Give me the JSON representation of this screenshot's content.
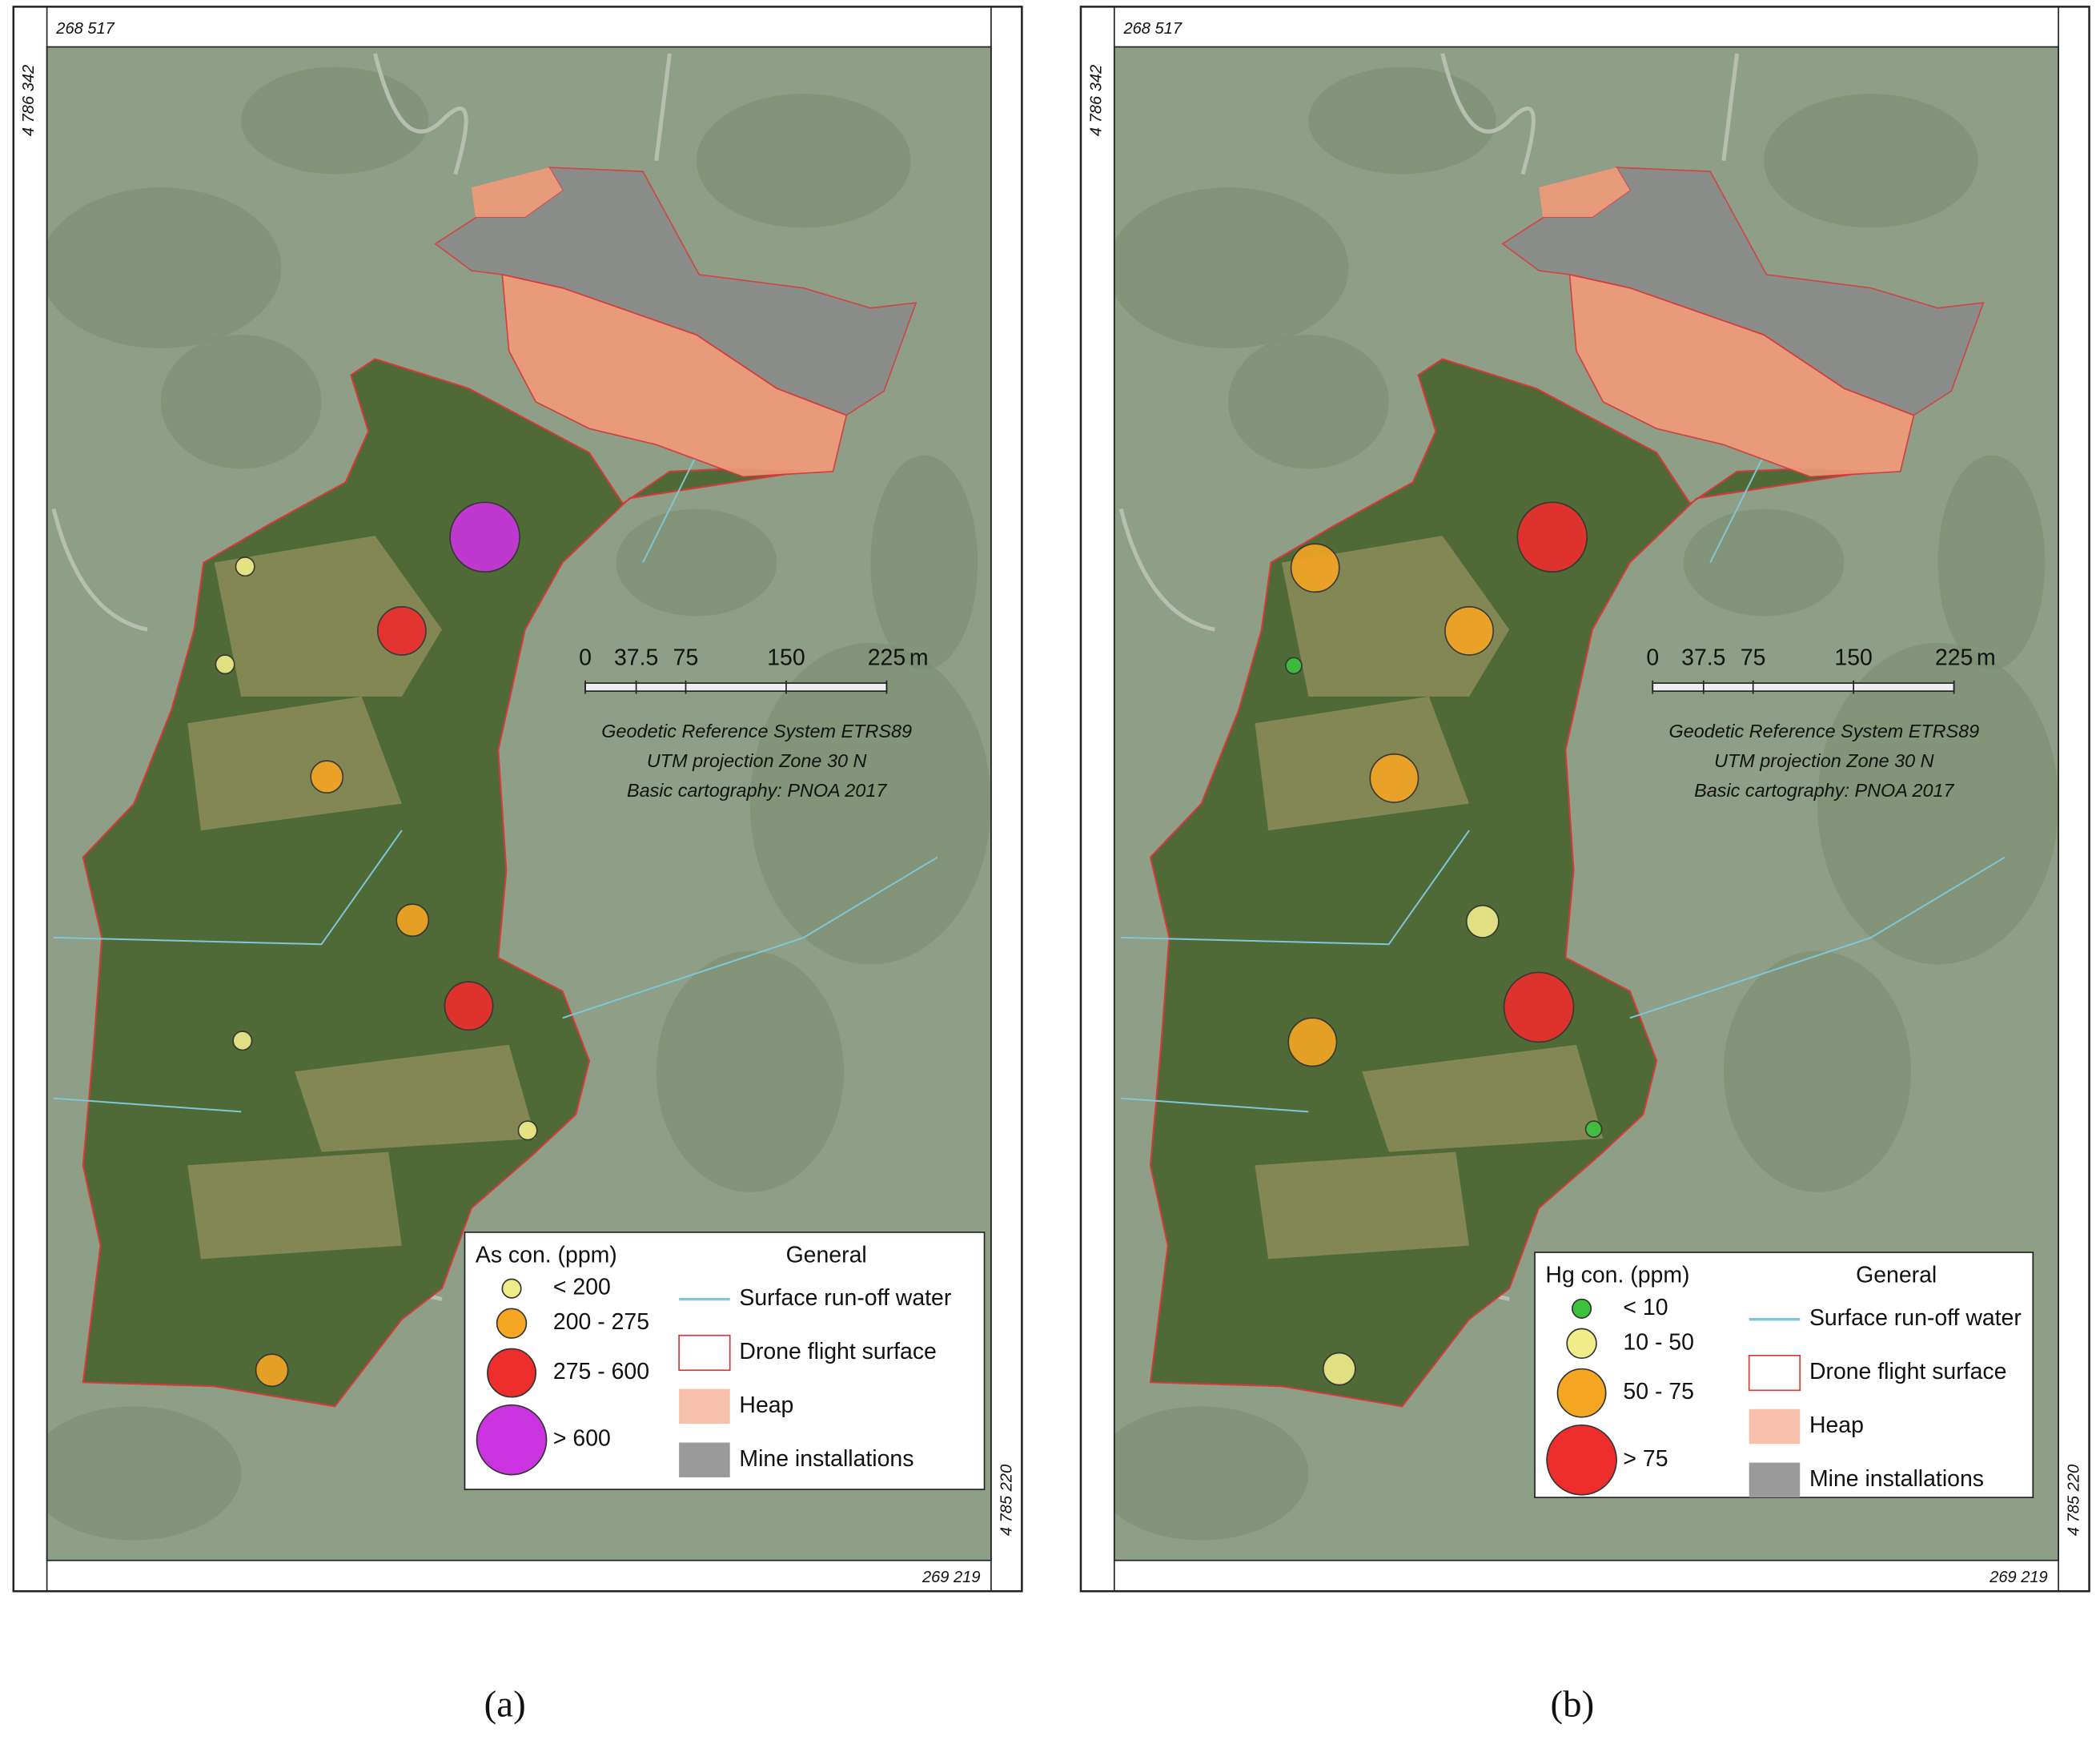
{
  "panels": [
    {
      "caption": "(a)",
      "coords": {
        "top_left": "268 517",
        "left": "4 786 342",
        "right": "4 785 220",
        "bottom_right": "269 219"
      },
      "scale": {
        "ticks": [
          "0",
          "37.5",
          "75",
          "150",
          "225"
        ],
        "unit": "m"
      },
      "reference": [
        "Geodetic Reference System ETRS89",
        "UTM projection Zone 30 N",
        "Basic cartography: PNOA 2017"
      ],
      "legend": {
        "title": "As con. (ppm)",
        "classes": [
          "< 200",
          "200 - 275",
          "275 - 600",
          "> 600"
        ],
        "general_title": "General",
        "general": [
          "Surface run-off water",
          "Drone flight surface",
          "Heap",
          "Mine installations"
        ]
      }
    },
    {
      "caption": "(b)",
      "coords": {
        "top_left": "268 517",
        "left": "4 786 342",
        "right": "4 785 220",
        "bottom_right": "269 219"
      },
      "scale": {
        "ticks": [
          "0",
          "37.5",
          "75",
          "150",
          "225"
        ],
        "unit": "m"
      },
      "reference": [
        "Geodetic Reference System ETRS89",
        "UTM projection Zone 30 N",
        "Basic cartography: PNOA 2017"
      ],
      "legend": {
        "title": "Hg con. (ppm)",
        "classes": [
          "< 10",
          "10 - 50",
          "50 - 75",
          "> 75"
        ],
        "general_title": "General",
        "general": [
          "Surface run-off water",
          "Drone flight surface",
          "Heap",
          "Mine installations"
        ]
      }
    }
  ]
}
